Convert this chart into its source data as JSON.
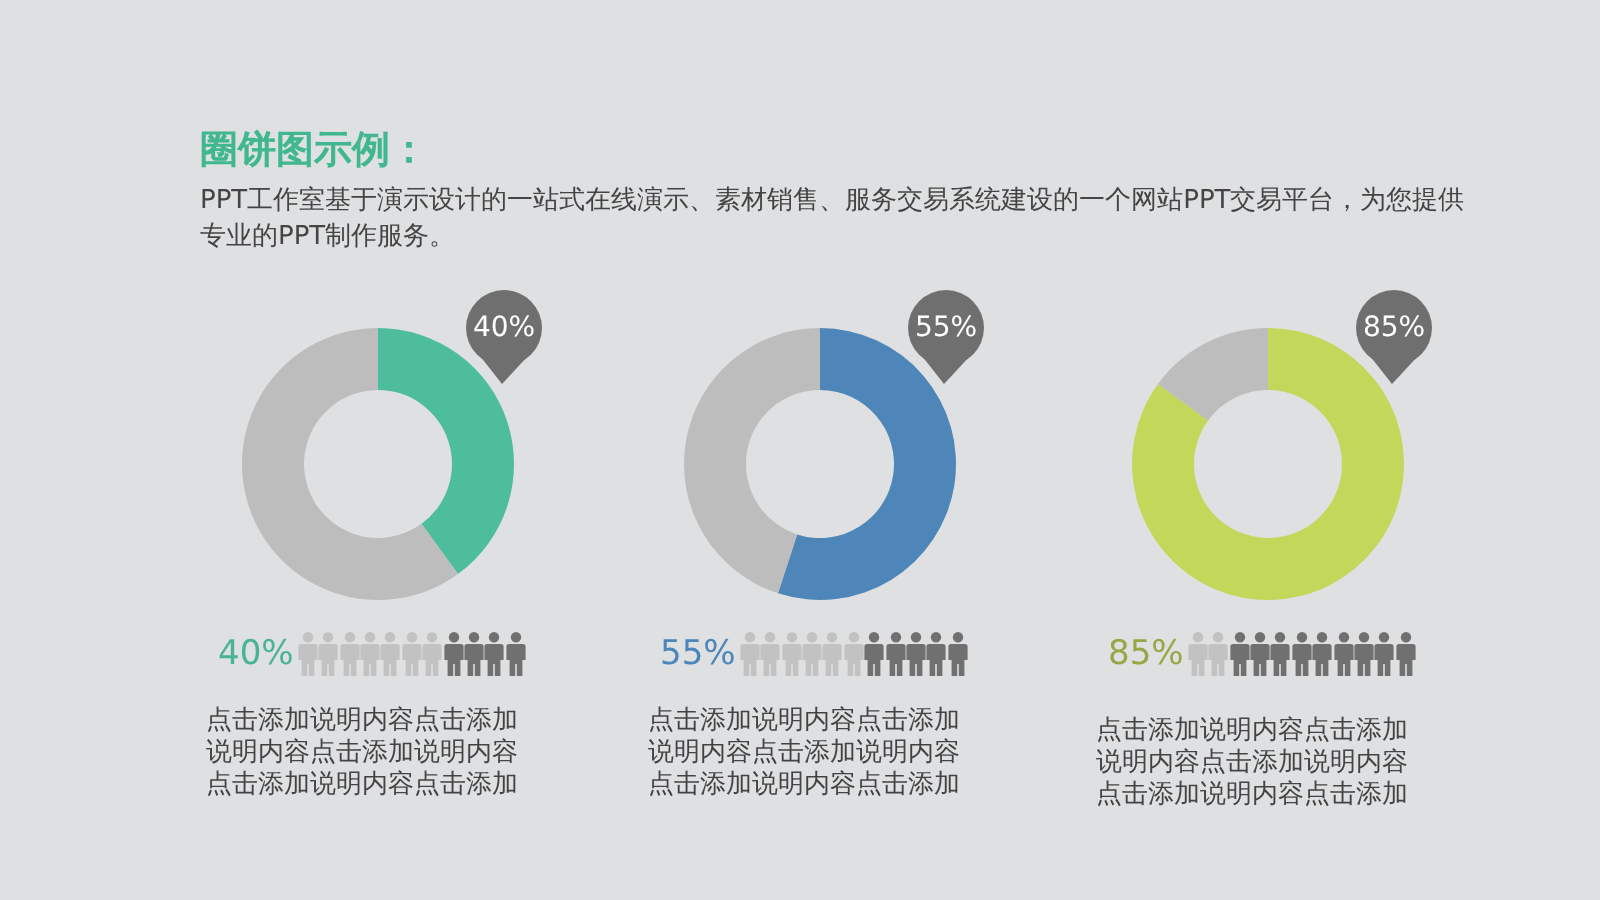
{
  "chart_data": [
    {
      "type": "other",
      "title": "圈饼图示例：",
      "subtitle": "PPT工作室基于演示设计的一站式在线演示、素材销售、服务交易系统建设的一个网站PPT交易平台，为您提供专业的PPT制作服务。"
    },
    {
      "type": "donut",
      "categories": [
        null,
        null
      ],
      "values": [
        40,
        60
      ],
      "colors": [
        "#4dbd9c",
        "#bdbdbd"
      ],
      "value_labels": [
        "40%",
        null
      ],
      "annotations": [
        "40%",
        "点击添加说明内容点击添加说明内容点击添加说明内容点击添加说明内容点击添加"
      ]
    },
    {
      "type": "donut",
      "categories": [
        null,
        null
      ],
      "values": [
        55,
        45
      ],
      "colors": [
        "#4f86b9",
        "#bdbdbd"
      ],
      "value_labels": [
        "55%",
        null
      ],
      "annotations": [
        "55%",
        "点击添加说明内容点击添加说明内容点击添加说明内容点击添加说明内容点击添加"
      ]
    },
    {
      "type": "donut",
      "categories": [
        null,
        null
      ],
      "values": [
        85,
        15
      ],
      "colors": [
        "#c3d85a",
        "#bdbdbd"
      ],
      "value_labels": [
        "85%",
        null
      ],
      "annotations": [
        "85%",
        "点击添加说明内容点击添加说明内容点击添加说明内容点击添加说明内容点击添加"
      ]
    }
  ]
}
